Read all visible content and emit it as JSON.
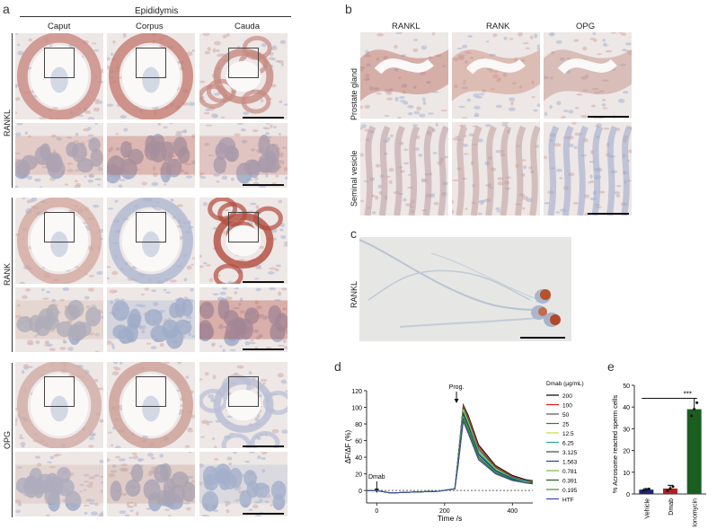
{
  "panels": {
    "a": {
      "letter": "a",
      "group_title": "Epididymis",
      "columns": [
        "Caput",
        "Corpus",
        "Cauda"
      ],
      "rows": [
        "RANKL",
        "RANK",
        "OPG"
      ]
    },
    "b": {
      "letter": "b",
      "columns": [
        "RANKL",
        "RANK",
        "OPG"
      ],
      "rows": [
        "Prostate gland",
        "Seminal vesicle"
      ]
    },
    "c": {
      "letter": "c",
      "row": "RANKL"
    },
    "d": {
      "letter": "d"
    },
    "e": {
      "letter": "e"
    }
  },
  "chart_data": [
    {
      "type": "line",
      "panel": "d",
      "xlabel": "Time /s",
      "ylabel": "ΔF/ΔF (%)",
      "xlim": [
        -30,
        460
      ],
      "ylim": [
        -15,
        120
      ],
      "xticks": [
        0,
        200,
        400
      ],
      "yticks": [
        -20,
        0,
        20,
        40,
        60,
        80,
        100,
        120
      ],
      "annotations": [
        {
          "text": "Dmab",
          "x": 0
        },
        {
          "text": "Prog.",
          "x": 235
        }
      ],
      "legend_title": "Dmab (µg/mL)",
      "legend_position": "right",
      "x": [
        -30,
        0,
        40,
        100,
        180,
        230,
        240,
        255,
        270,
        300,
        350,
        400,
        440,
        460
      ],
      "series": [
        {
          "name": "200",
          "color": "#000000",
          "values": [
            0,
            0,
            -3,
            -2,
            -1,
            2,
            40,
            103,
            90,
            55,
            30,
            18,
            13,
            12
          ]
        },
        {
          "name": "100",
          "color": "#e41a1c",
          "values": [
            0,
            0,
            -3,
            -2,
            -1,
            2,
            40,
            102,
            88,
            53,
            29,
            17,
            12,
            12
          ]
        },
        {
          "name": "50",
          "color": "#555555",
          "values": [
            0,
            0,
            -3,
            -2,
            -1,
            2,
            39,
            101,
            86,
            51,
            28,
            16,
            12,
            11
          ]
        },
        {
          "name": "25",
          "color": "#2e7d32",
          "values": [
            0,
            0,
            -3,
            -2,
            -1,
            2,
            38,
            99,
            84,
            49,
            27,
            16,
            11,
            11
          ]
        },
        {
          "name": "12.5",
          "color": "#cddc39",
          "values": [
            0,
            0,
            -3,
            -2,
            -1,
            2,
            37,
            97,
            82,
            47,
            26,
            15,
            11,
            10
          ]
        },
        {
          "name": "6.25",
          "color": "#26a69a",
          "values": [
            0,
            0,
            -3,
            -2,
            -1,
            2,
            36,
            95,
            80,
            46,
            25,
            15,
            11,
            10
          ]
        },
        {
          "name": "3.125",
          "color": "#37474f",
          "values": [
            0,
            0,
            -3,
            -2,
            -1,
            2,
            35,
            93,
            78,
            44,
            24,
            14,
            10,
            10
          ]
        },
        {
          "name": "1.563",
          "color": "#0d47a1",
          "values": [
            0,
            0,
            -3,
            -2,
            -1,
            2,
            34,
            91,
            76,
            43,
            23,
            14,
            10,
            9
          ]
        },
        {
          "name": "0.781",
          "color": "#7cb342",
          "values": [
            0,
            0,
            -3,
            -2,
            -1,
            2,
            33,
            89,
            74,
            41,
            22,
            13,
            10,
            9
          ]
        },
        {
          "name": "0.391",
          "color": "#1b5e20",
          "values": [
            0,
            0,
            -3,
            -2,
            -1,
            2,
            32,
            87,
            72,
            40,
            21,
            13,
            9,
            9
          ]
        },
        {
          "name": "0.195",
          "color": "#558b2f",
          "values": [
            0,
            0,
            -3,
            -2,
            -1,
            2,
            31,
            85,
            70,
            38,
            20,
            12,
            9,
            8
          ]
        },
        {
          "name": "HTF",
          "color": "#3949ab",
          "values": [
            0,
            0,
            -3,
            -2,
            -1,
            2,
            30,
            83,
            68,
            37,
            20,
            12,
            9,
            8
          ]
        }
      ]
    },
    {
      "type": "bar",
      "panel": "e",
      "ylabel": "% Acrosome reacted sperm cells",
      "ylim": [
        0,
        50
      ],
      "yticks": [
        0,
        10,
        20,
        30,
        40,
        50
      ],
      "categories": [
        "Vehicle",
        "Dmab",
        "Ionomycin"
      ],
      "values": [
        2,
        2.5,
        39
      ],
      "errors": [
        0.5,
        1.5,
        5
      ],
      "colors": [
        "#1a237e",
        "#b71c1c",
        "#1b5e20"
      ],
      "significance": "***"
    }
  ]
}
